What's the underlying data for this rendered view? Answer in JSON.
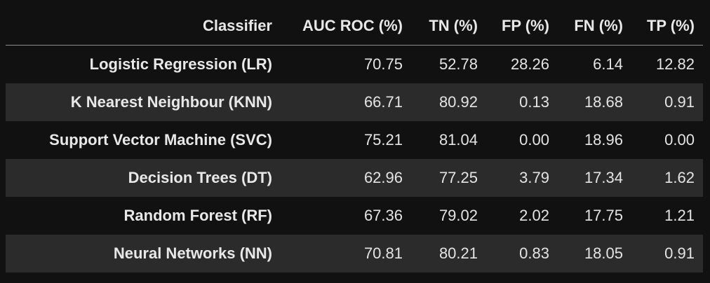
{
  "table": {
    "columns": [
      "Classifier",
      "AUC ROC (%)",
      "TN (%)",
      "FP (%)",
      "FN (%)",
      "TP (%)"
    ],
    "rows": [
      {
        "classifier": "Logistic Regression (LR)",
        "auc_roc": "70.75",
        "tn": "52.78",
        "fp": "28.26",
        "fn": "6.14",
        "tp": "12.82"
      },
      {
        "classifier": "K Nearest Neighbour (KNN)",
        "auc_roc": "66.71",
        "tn": "80.92",
        "fp": "0.13",
        "fn": "18.68",
        "tp": "0.91"
      },
      {
        "classifier": "Support Vector Machine (SVC)",
        "auc_roc": "75.21",
        "tn": "81.04",
        "fp": "0.00",
        "fn": "18.96",
        "tp": "0.00"
      },
      {
        "classifier": "Decision Trees (DT)",
        "auc_roc": "62.96",
        "tn": "77.25",
        "fp": "3.79",
        "fn": "17.34",
        "tp": "1.62"
      },
      {
        "classifier": "Random Forest (RF)",
        "auc_roc": "67.36",
        "tn": "79.02",
        "fp": "2.02",
        "fn": "17.75",
        "tp": "1.21"
      },
      {
        "classifier": "Neural Networks (NN)",
        "auc_roc": "70.81",
        "tn": "80.21",
        "fp": "0.83",
        "fn": "18.05",
        "tp": "0.91"
      }
    ]
  }
}
